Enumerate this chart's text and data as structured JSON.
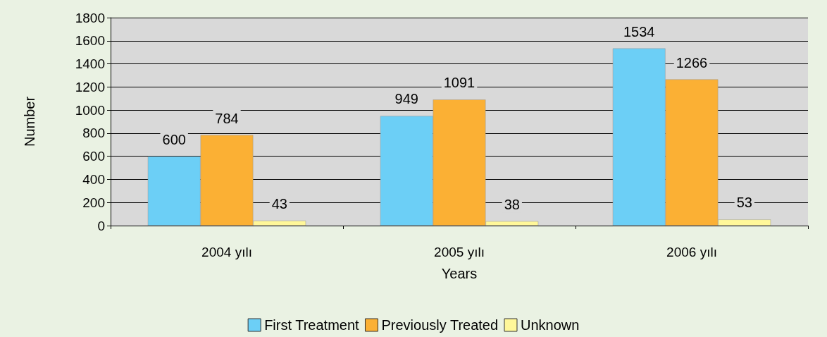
{
  "chart_data": {
    "type": "bar",
    "xlabel": "Years",
    "ylabel": "Number",
    "categories": [
      "2004 yılı",
      "2005 yılı",
      "2006 yılı"
    ],
    "series": [
      {
        "name": "First Treatment",
        "color": "#6ccff6",
        "values": [
          600,
          949,
          1534
        ]
      },
      {
        "name": "Previously Treated",
        "color": "#fbb034",
        "values": [
          784,
          1091,
          1266
        ]
      },
      {
        "name": "Unknown",
        "color": "#fff799",
        "values": [
          43,
          38,
          53
        ]
      }
    ],
    "ylim": [
      0,
      1800
    ],
    "yticks": [
      0,
      200,
      400,
      600,
      800,
      1000,
      1200,
      1400,
      1600,
      1800
    ],
    "grid": "y",
    "legend": "bottom",
    "data_labels": true
  }
}
